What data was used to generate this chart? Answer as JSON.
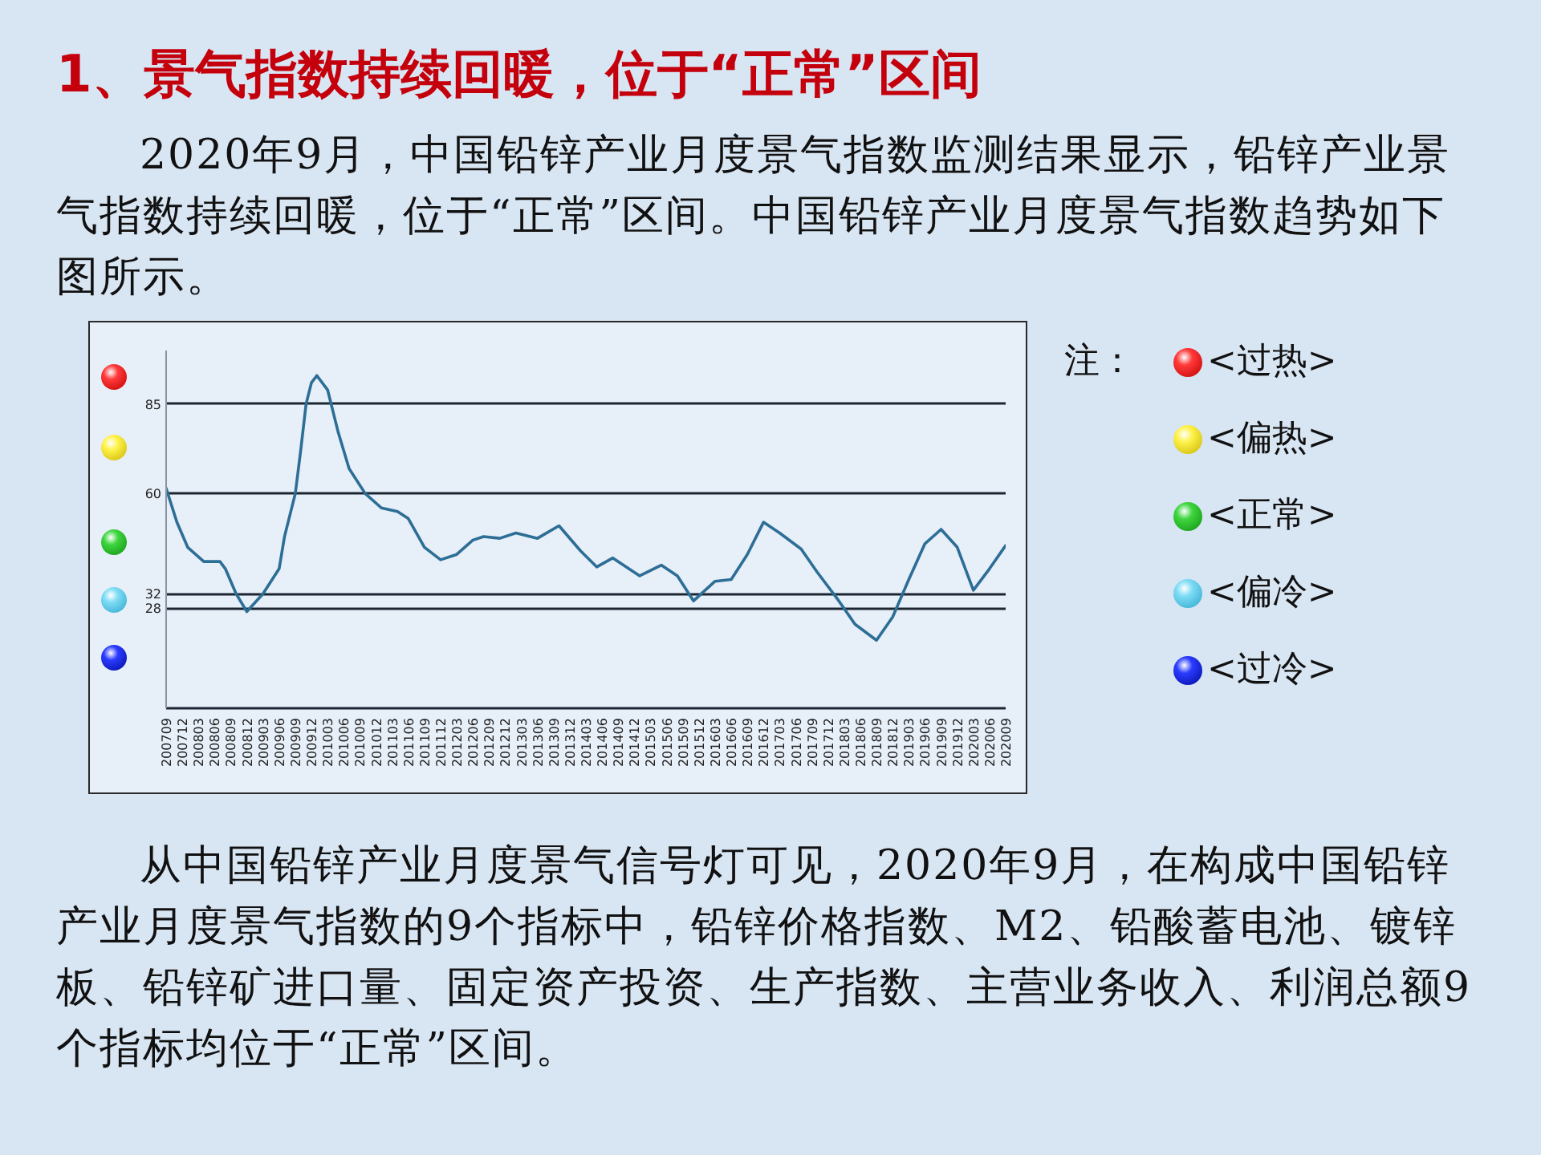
{
  "chart_data": {
    "type": "line",
    "title": "1、景气指数持续回暖，位于“正常”区间",
    "annotations": [
      "2020年9月，中国铅锌产业月度景气指数监测结果显示，铅锌产业景气指数持续回暖，位于“正常”区间。中国铅锌产业月度景气指数趋势如下图所示。",
      "注：",
      "<过热>",
      "<偏热>",
      "<正常>",
      "<偏冷>",
      "<过冷>",
      "从中国铅锌产业月度景气信号灯可见，2020年9月，在构成中国铅锌产业月度景气指数的9个指标中，铅锌价格指数、M2、铅酸蓄电池、镀锌板、铅锌矿进口量、固定资产投资、生产指数、主营业务收入、利润总额9个指标均位于“正常”区间。"
    ],
    "series": [
      {
        "color": "#2d6e96",
        "x": [
          "2007-09",
          "2007-11",
          "2008-01",
          "2008-04",
          "2008-07",
          "2008-08",
          "2008-10",
          "2008-12",
          "2009-03",
          "2009-06",
          "2009-07",
          "2009-09",
          "2009-10",
          "2009-11",
          "2009-12",
          "2010-01",
          "2010-03",
          "2010-05",
          "2010-07",
          "2010-10",
          "2011-01",
          "2011-04",
          "2011-06",
          "2011-09",
          "2011-12",
          "2012-03",
          "2012-06",
          "2012-08",
          "2012-11",
          "2013-02",
          "2013-06",
          "2013-10",
          "2014-02",
          "2014-05",
          "2014-08",
          "2015-01",
          "2015-05",
          "2015-08",
          "2015-11",
          "2016-03",
          "2016-06",
          "2016-09",
          "2016-12",
          "2017-03",
          "2017-07",
          "2017-10",
          "2018-02",
          "2018-05",
          "2018-09",
          "2018-12",
          "2019-03",
          "2019-06",
          "2019-09",
          "2019-12",
          "2020-03",
          "2020-06",
          "2020-09"
        ],
        "values": [
          61.5,
          52,
          45,
          41,
          41,
          39,
          32,
          27,
          32,
          39,
          48,
          60,
          72,
          85,
          91,
          93,
          89,
          77,
          67,
          60,
          56,
          55,
          53,
          45,
          41.5,
          43,
          47,
          48,
          47.5,
          49,
          47.5,
          51,
          44,
          39.5,
          42,
          37,
          40,
          37,
          30,
          35.5,
          36,
          43,
          52,
          49,
          44.5,
          38,
          30,
          23.5,
          19,
          25.5,
          36,
          46,
          50,
          45,
          33,
          39,
          45.5
        ]
      }
    ],
    "xlim": [
      "2007-09",
      "2020-09"
    ],
    "xticks": [
      {
        "value": "2007-09",
        "label": "200709"
      },
      {
        "value": "2007-12",
        "label": "200712"
      },
      {
        "value": "2008-03",
        "label": "200803"
      },
      {
        "value": "2008-06",
        "label": "200806"
      },
      {
        "value": "2008-09",
        "label": "200809"
      },
      {
        "value": "2008-12",
        "label": "200812"
      },
      {
        "value": "2009-03",
        "label": "200903"
      },
      {
        "value": "2009-06",
        "label": "200906"
      },
      {
        "value": "2009-09",
        "label": "200909"
      },
      {
        "value": "2009-12",
        "label": "200912"
      },
      {
        "value": "2010-03",
        "label": "201003"
      },
      {
        "value": "2010-06",
        "label": "201006"
      },
      {
        "value": "2010-09",
        "label": "201009"
      },
      {
        "value": "2010-12",
        "label": "201012"
      },
      {
        "value": "2011-03",
        "label": "201103"
      },
      {
        "value": "2011-06",
        "label": "201106"
      },
      {
        "value": "2011-09",
        "label": "201109"
      },
      {
        "value": "2011-12",
        "label": "201112"
      },
      {
        "value": "2012-03",
        "label": "201203"
      },
      {
        "value": "2012-06",
        "label": "201206"
      },
      {
        "value": "2012-09",
        "label": "201209"
      },
      {
        "value": "2012-12",
        "label": "201212"
      },
      {
        "value": "2013-03",
        "label": "201303"
      },
      {
        "value": "2013-06",
        "label": "201306"
      },
      {
        "value": "2013-09",
        "label": "201309"
      },
      {
        "value": "2013-12",
        "label": "201312"
      },
      {
        "value": "2014-03",
        "label": "201403"
      },
      {
        "value": "2014-06",
        "label": "201406"
      },
      {
        "value": "2014-09",
        "label": "201409"
      },
      {
        "value": "2014-12",
        "label": "201412"
      },
      {
        "value": "2015-03",
        "label": "201503"
      },
      {
        "value": "2015-06",
        "label": "201506"
      },
      {
        "value": "2015-09",
        "label": "201509"
      },
      {
        "value": "2015-12",
        "label": "201512"
      },
      {
        "value": "2016-03",
        "label": "201603"
      },
      {
        "value": "2016-06",
        "label": "201606"
      },
      {
        "value": "2016-09",
        "label": "201609"
      },
      {
        "value": "2016-12",
        "label": "201612"
      },
      {
        "value": "2017-03",
        "label": "201703"
      },
      {
        "value": "2017-06",
        "label": "201706"
      },
      {
        "value": "2017-09",
        "label": "201709"
      },
      {
        "value": "2017-12",
        "label": "201712"
      },
      {
        "value": "2018-03",
        "label": "201803"
      },
      {
        "value": "2018-06",
        "label": "201806"
      },
      {
        "value": "2018-09",
        "label": "201809"
      },
      {
        "value": "2018-12",
        "label": "201812"
      },
      {
        "value": "2019-03",
        "label": "201903"
      },
      {
        "value": "2019-06",
        "label": "201906"
      },
      {
        "value": "2019-09",
        "label": "201909"
      },
      {
        "value": "2019-12",
        "label": "201912"
      },
      {
        "value": "2020-03",
        "label": "202003"
      },
      {
        "value": "2020-06",
        "label": "202006"
      },
      {
        "value": "2020-09",
        "label": "202009"
      }
    ],
    "ylim": [
      0,
      100
    ],
    "yticks": [
      28,
      32,
      60,
      85
    ],
    "grid": "y"
  }
}
